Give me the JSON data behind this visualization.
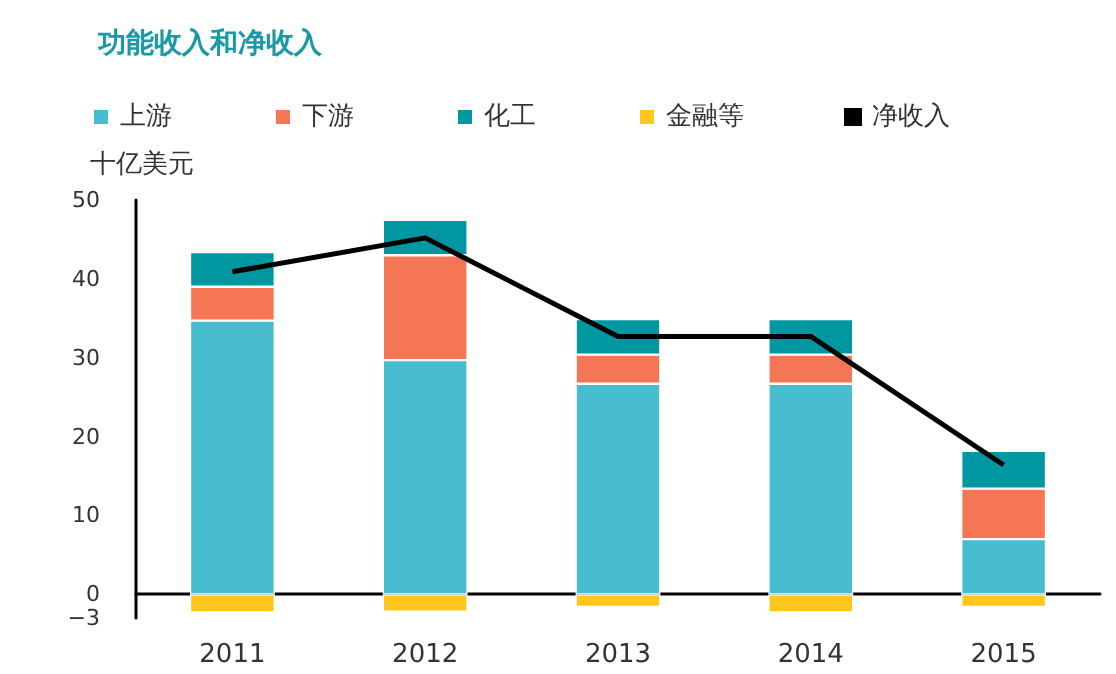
{
  "chart_data": {
    "type": "bar",
    "title": "功能收入和净收入",
    "ylabel": "十亿美元",
    "categories": [
      "2011",
      "2012",
      "2013",
      "2014",
      "2015"
    ],
    "stacked": true,
    "series": [
      {
        "name": "上游",
        "color": "#48bdcf",
        "values": [
          34.7,
          29.7,
          26.7,
          26.7,
          7.0
        ]
      },
      {
        "name": "下游",
        "color": "#f47654",
        "values": [
          4.3,
          13.3,
          3.7,
          3.7,
          6.4
        ]
      },
      {
        "name": "化工",
        "color": "#0097a0",
        "values": [
          4.4,
          4.5,
          4.5,
          4.5,
          4.8
        ]
      },
      {
        "name": "金融等",
        "color": "#ffc61e",
        "values": [
          -2.3,
          -2.2,
          -1.6,
          -2.3,
          -1.6
        ]
      },
      {
        "name": "净收入",
        "type": "line",
        "color": "#000000",
        "values": [
          40.9,
          45.2,
          32.7,
          32.7,
          16.4
        ]
      }
    ],
    "ylim": [
      -3,
      50
    ],
    "yticks": [
      {
        "value": -3,
        "label": "−3"
      },
      0,
      10,
      20,
      30,
      40,
      50
    ],
    "grid": false,
    "legend": "top",
    "marker": "none",
    "line_style": "solid"
  }
}
